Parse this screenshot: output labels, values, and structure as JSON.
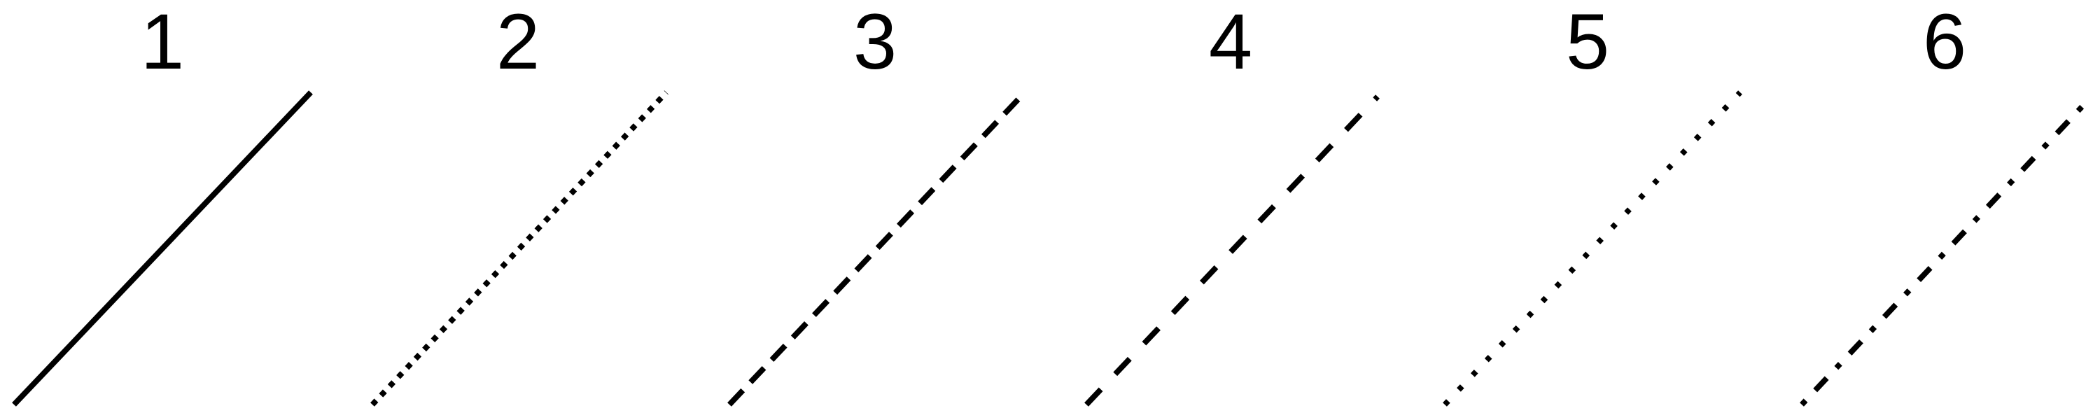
{
  "line_styles": [
    {
      "label": "1",
      "pattern": "solid"
    },
    {
      "label": "2",
      "pattern": "dotted"
    },
    {
      "label": "3",
      "pattern": "dashed"
    },
    {
      "label": "4",
      "pattern": "long-dashed"
    },
    {
      "label": "5",
      "pattern": "sparse-dotted"
    },
    {
      "label": "6",
      "pattern": "dash-dot"
    }
  ],
  "colors": {
    "line": "#000000",
    "background": "#ffffff"
  }
}
